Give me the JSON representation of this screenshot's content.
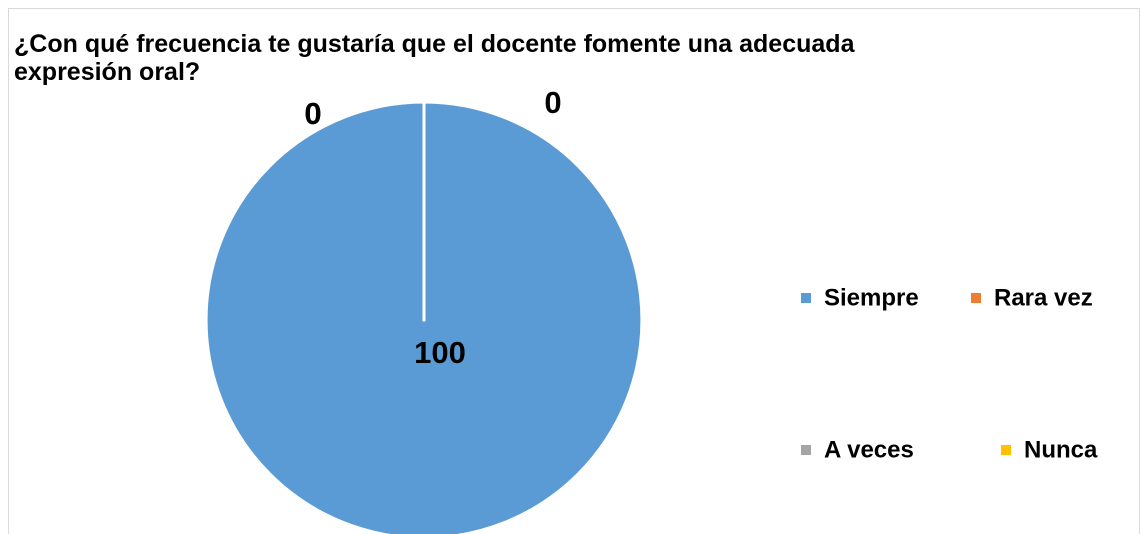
{
  "chart_data": {
    "type": "pie",
    "title": "¿Con qué frecuencia te gustaría que el docente fomente una adecuada expresión oral?",
    "categories": [
      "Siempre",
      "Rara vez",
      "A veces",
      "Nunca"
    ],
    "values": [
      100,
      0,
      0,
      0
    ],
    "colors": [
      "#5b9bd5",
      "#ed7d31",
      "#a5a5a5",
      "#ffc000"
    ],
    "legend": "right"
  }
}
